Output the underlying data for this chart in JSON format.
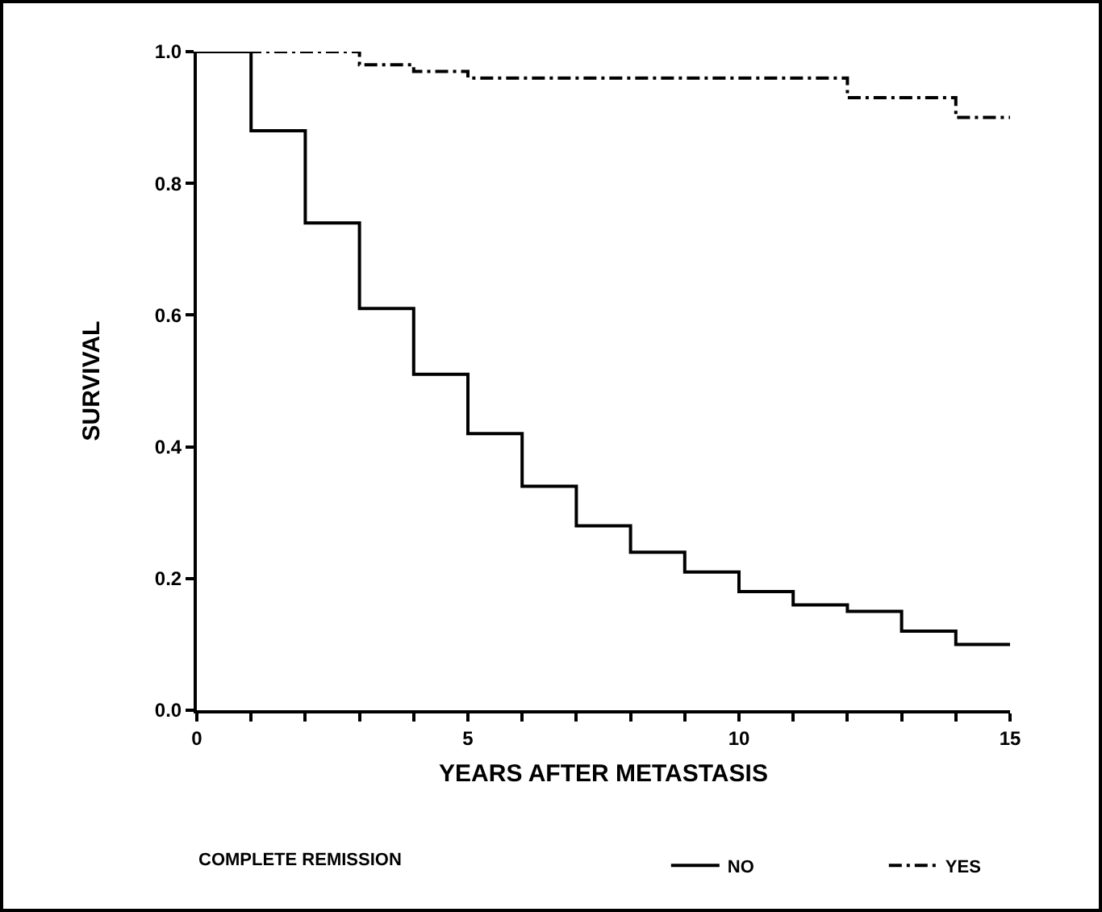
{
  "chart_data": {
    "type": "step",
    "xlabel": "YEARS AFTER METASTASIS",
    "ylabel": "SURVIVAL",
    "legend_title": "COMPLETE REMISSION",
    "legend": "bottom",
    "grid": false,
    "marker": "none",
    "xlim": [
      0,
      15
    ],
    "xticks": [
      0,
      {
        "value": 1,
        "label": null
      },
      {
        "value": 2,
        "label": null
      },
      {
        "value": 3,
        "label": null
      },
      {
        "value": 4,
        "label": null
      },
      5,
      {
        "value": 6,
        "label": null
      },
      {
        "value": 7,
        "label": null
      },
      {
        "value": 8,
        "label": null
      },
      {
        "value": 9,
        "label": null
      },
      10,
      {
        "value": 11,
        "label": null
      },
      {
        "value": 12,
        "label": null
      },
      {
        "value": 13,
        "label": null
      },
      {
        "value": 14,
        "label": null
      },
      15
    ],
    "ylim": [
      0,
      1
    ],
    "yticks": [
      {
        "value": 0,
        "label": "0.0"
      },
      {
        "value": 0.2,
        "label": "0.2"
      },
      {
        "value": 0.4,
        "label": "0.4"
      },
      {
        "value": 0.6,
        "label": "0.6"
      },
      {
        "value": 0.8,
        "label": "0.8"
      },
      {
        "value": 1,
        "label": "1.0"
      }
    ],
    "series": [
      {
        "name": "NO",
        "color": "#000000",
        "line_style": "solid",
        "x": [
          0,
          1,
          2,
          3,
          4,
          5,
          6,
          7,
          8,
          9,
          10,
          11,
          12,
          13,
          14,
          15
        ],
        "values": [
          1.0,
          0.88,
          0.74,
          0.61,
          0.51,
          0.42,
          0.34,
          0.28,
          0.24,
          0.21,
          0.18,
          0.16,
          0.15,
          0.12,
          0.1,
          0.1
        ]
      },
      {
        "name": "YES",
        "color": "#000000",
        "line_style": "dashed",
        "x": [
          0,
          3,
          4,
          5,
          12,
          14,
          15
        ],
        "values": [
          1.0,
          0.98,
          0.97,
          0.96,
          0.93,
          0.9,
          0.9
        ]
      }
    ]
  }
}
